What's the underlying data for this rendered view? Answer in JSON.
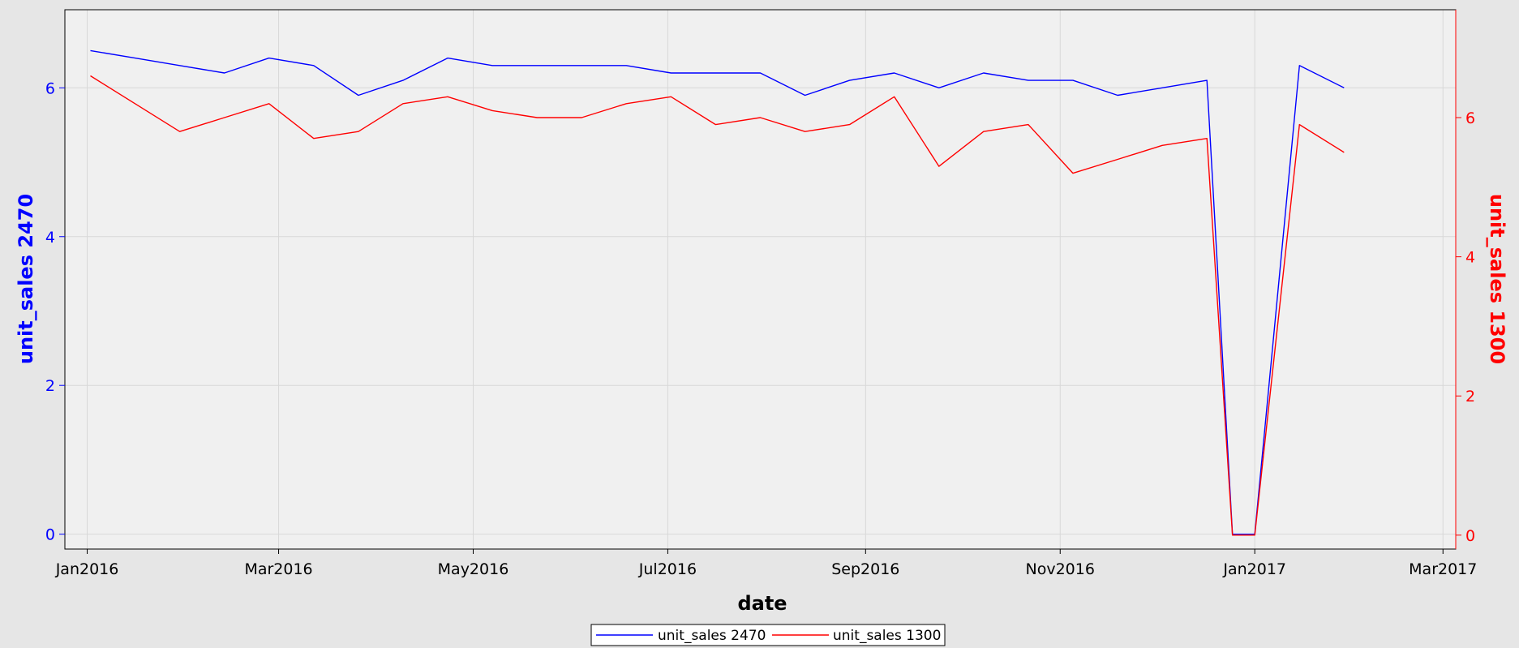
{
  "chart_data": {
    "type": "line",
    "title": "",
    "xlabel": "date",
    "ylabel_left": "unit_sales 2470",
    "ylabel_right": "unit_sales 1300",
    "x_type": "date",
    "xlim": [
      "2015-12-25",
      "2017-03-05"
    ],
    "ylim_left": [
      -0.2,
      7.05
    ],
    "ylim_right": [
      -0.2,
      7.55
    ],
    "x_ticks": [
      "Jan2016",
      "Mar2016",
      "May2016",
      "Jul2016",
      "Sep2016",
      "Nov2016",
      "Jan2017",
      "Mar2017"
    ],
    "x_tick_dates": [
      "2016-01-01",
      "2016-03-01",
      "2016-05-01",
      "2016-07-01",
      "2016-09-01",
      "2016-11-01",
      "2017-01-01",
      "2017-03-01"
    ],
    "y_ticks_left": [
      0,
      2,
      4,
      6
    ],
    "y_ticks_right": [
      0,
      2,
      4,
      6
    ],
    "grid": true,
    "legend_position": "bottom-center",
    "series": [
      {
        "name": "unit_sales 2470",
        "axis": "left",
        "color": "#0000ff",
        "x": [
          "2016-01-02",
          "2016-01-16",
          "2016-01-30",
          "2016-02-13",
          "2016-02-27",
          "2016-03-12",
          "2016-03-26",
          "2016-04-09",
          "2016-04-23",
          "2016-05-07",
          "2016-05-21",
          "2016-06-04",
          "2016-06-18",
          "2016-07-02",
          "2016-07-16",
          "2016-07-30",
          "2016-08-13",
          "2016-08-27",
          "2016-09-10",
          "2016-09-24",
          "2016-10-08",
          "2016-10-22",
          "2016-11-05",
          "2016-11-19",
          "2016-12-03",
          "2016-12-17",
          "2016-12-25",
          "2017-01-01",
          "2017-01-15",
          "2017-01-29"
        ],
        "values": [
          6.5,
          6.4,
          6.3,
          6.2,
          6.4,
          6.3,
          5.9,
          6.1,
          6.4,
          6.3,
          6.3,
          6.3,
          6.3,
          6.2,
          6.2,
          6.2,
          5.9,
          6.1,
          6.2,
          6.0,
          6.2,
          6.1,
          6.1,
          5.9,
          6.0,
          6.1,
          0.0,
          0.0,
          6.3,
          6.0
        ]
      },
      {
        "name": "unit_sales 1300",
        "axis": "right",
        "color": "#ff0000",
        "x": [
          "2016-01-02",
          "2016-01-16",
          "2016-01-30",
          "2016-02-13",
          "2016-02-27",
          "2016-03-12",
          "2016-03-26",
          "2016-04-09",
          "2016-04-23",
          "2016-05-07",
          "2016-05-21",
          "2016-06-04",
          "2016-06-18",
          "2016-07-02",
          "2016-07-16",
          "2016-07-30",
          "2016-08-13",
          "2016-08-27",
          "2016-09-10",
          "2016-09-24",
          "2016-10-08",
          "2016-10-22",
          "2016-11-05",
          "2016-11-19",
          "2016-12-03",
          "2016-12-17",
          "2016-12-25",
          "2017-01-01",
          "2017-01-15",
          "2017-01-29"
        ],
        "values": [
          6.6,
          6.2,
          5.8,
          6.0,
          6.2,
          5.7,
          5.8,
          6.2,
          6.3,
          6.1,
          6.0,
          6.0,
          6.2,
          6.3,
          5.9,
          6.0,
          5.8,
          5.9,
          6.3,
          5.3,
          5.8,
          5.9,
          5.2,
          5.4,
          5.6,
          5.7,
          0.0,
          0.0,
          5.9,
          5.5
        ]
      }
    ]
  }
}
